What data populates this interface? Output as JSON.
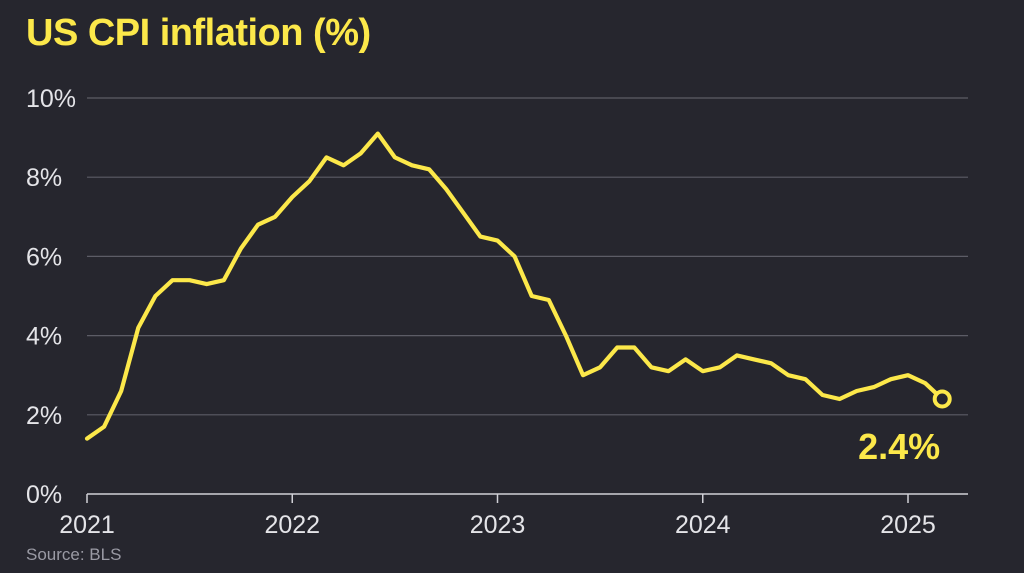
{
  "chart": {
    "title": "US CPI inflation (%)",
    "source": "Source: BLS"
  },
  "colors": {
    "background": "#26262e",
    "accent": "#fce84a",
    "grid": "#5c5c66",
    "text": "#e4e4e8"
  },
  "chart_data": {
    "type": "line",
    "title": "US CPI inflation (%)",
    "xlabel": "",
    "ylabel": "",
    "xlim": [
      "2021-01",
      "2025-04"
    ],
    "ylim": [
      0,
      10
    ],
    "y_ticks": [
      0,
      2,
      4,
      6,
      8,
      10
    ],
    "y_tick_labels": [
      "0%",
      "2%",
      "4%",
      "6%",
      "8%",
      "10%"
    ],
    "x_ticks": [
      "2021-01",
      "2022-01",
      "2023-01",
      "2024-01",
      "2025-01"
    ],
    "x_tick_labels": [
      "2021",
      "2022",
      "2023",
      "2024",
      "2025"
    ],
    "grid": "horizontal",
    "end_label": "2.4%",
    "series": [
      {
        "color": "#fce84a",
        "x": [
          "2021-01",
          "2021-02",
          "2021-03",
          "2021-04",
          "2021-05",
          "2021-06",
          "2021-07",
          "2021-08",
          "2021-09",
          "2021-10",
          "2021-11",
          "2021-12",
          "2022-01",
          "2022-02",
          "2022-03",
          "2022-04",
          "2022-05",
          "2022-06",
          "2022-07",
          "2022-08",
          "2022-09",
          "2022-10",
          "2022-11",
          "2022-12",
          "2023-01",
          "2023-02",
          "2023-03",
          "2023-04",
          "2023-05",
          "2023-06",
          "2023-07",
          "2023-08",
          "2023-09",
          "2023-10",
          "2023-11",
          "2023-12",
          "2024-01",
          "2024-02",
          "2024-03",
          "2024-04",
          "2024-05",
          "2024-06",
          "2024-07",
          "2024-08",
          "2024-09",
          "2024-10",
          "2024-11",
          "2024-12",
          "2025-01",
          "2025-02",
          "2025-03"
        ],
        "values": [
          1.4,
          1.7,
          2.6,
          4.2,
          5.0,
          5.4,
          5.4,
          5.3,
          5.4,
          6.2,
          6.8,
          7.0,
          7.5,
          7.9,
          8.5,
          8.3,
          8.6,
          9.1,
          8.5,
          8.3,
          8.2,
          7.7,
          7.1,
          6.5,
          6.4,
          6.0,
          5.0,
          4.9,
          4.0,
          3.0,
          3.2,
          3.7,
          3.7,
          3.2,
          3.1,
          3.4,
          3.1,
          3.2,
          3.5,
          3.4,
          3.3,
          3.0,
          2.9,
          2.5,
          2.4,
          2.6,
          2.7,
          2.9,
          3.0,
          2.8,
          2.4
        ]
      }
    ]
  }
}
